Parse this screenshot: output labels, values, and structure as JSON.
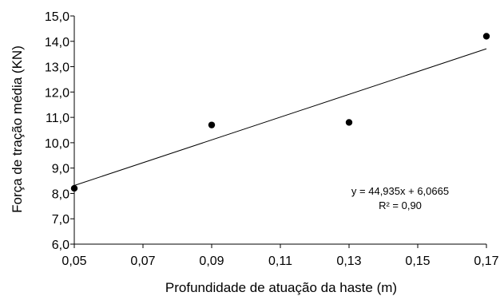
{
  "chart_data": {
    "type": "scatter",
    "title": "",
    "xlabel": "Profundidade de atuação da haste (m)",
    "ylabel": "Força de tração média (KN)",
    "xlim": [
      0.05,
      0.17
    ],
    "ylim": [
      6.0,
      15.0
    ],
    "x_ticks": [
      "0,05",
      "0,07",
      "0,09",
      "0,11",
      "0,13",
      "0,15",
      "0,17"
    ],
    "x_tick_values": [
      0.05,
      0.07,
      0.09,
      0.11,
      0.13,
      0.15,
      0.17
    ],
    "y_ticks": [
      "6,0",
      "7,0",
      "8,0",
      "9,0",
      "10,0",
      "11,0",
      "12,0",
      "13,0",
      "14,0",
      "15,0"
    ],
    "y_tick_values": [
      6,
      7,
      8,
      9,
      10,
      11,
      12,
      13,
      14,
      15
    ],
    "grid": false,
    "series": [
      {
        "x": [
          0.05,
          0.09,
          0.13,
          0.17
        ],
        "y": [
          8.2,
          10.7,
          10.8,
          14.2
        ],
        "color": "#000000"
      }
    ],
    "trendline": {
      "type": "linear",
      "slope": 44.935,
      "intercept": 6.0665,
      "color": "#000000"
    },
    "annotations": [
      "y = 44,935x + 6,0665",
      "R² = 0,90"
    ]
  }
}
